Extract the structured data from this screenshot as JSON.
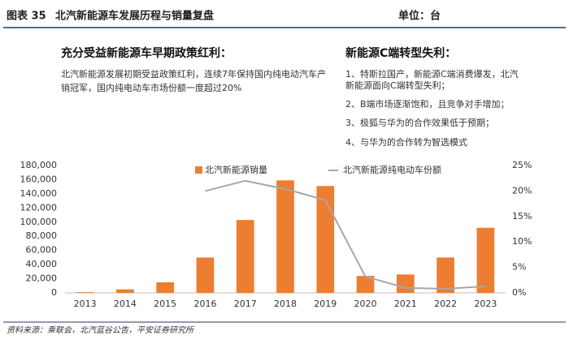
{
  "header": {
    "label": "图表 35",
    "title": "北汽新能源车发展历程与销量复盘",
    "unit": "单位：台"
  },
  "notes": {
    "left": {
      "title": "充分受益新能源车早期政策红利：",
      "lines": [
        "北汽新能源发展初期受益政策红利，连续7年保持国内纯电动汽车产",
        "销冠军，国内纯电动车市场份额一度超过20%"
      ]
    },
    "right": {
      "title": "新能源C端转型失利：",
      "lines": [
        "1、特斯拉国产，新能源C端消费爆发，北汽",
        "新能源面向C端转型失利；",
        "2、B端市场逐渐饱和，且竞争对手增加；",
        "3、极狐与华为的合作效果低于预期；",
        "4、与华为的合作转为智选模式"
      ]
    }
  },
  "source": "资料来源：乘联会，北汽蓝谷公告，平安证券研究所",
  "chart_data": {
    "type": "bar-line",
    "categories": [
      "2013",
      "2014",
      "2015",
      "2016",
      "2017",
      "2018",
      "2019",
      "2020",
      "2021",
      "2022",
      "2023"
    ],
    "series": [
      {
        "name": "北汽新能源销量",
        "color": "#ed7d31",
        "type": "bar",
        "values": [
          1000,
          5000,
          15000,
          50000,
          103000,
          159000,
          151000,
          24000,
          26000,
          50000,
          92000
        ]
      },
      {
        "name": "北汽新能源纯电动车份额",
        "color": "#a6a6a6",
        "type": "line",
        "axis": "y2",
        "values": [
          null,
          null,
          null,
          20,
          22,
          20.4,
          18.2,
          3.2,
          1,
          0.8,
          1.3
        ]
      }
    ],
    "ylim": [
      0,
      180000
    ],
    "yticks": [
      0,
      {
        "value": 20000,
        "label": "20,000"
      },
      {
        "value": 40000,
        "label": "40,000"
      },
      {
        "value": 60000,
        "label": "60,000"
      },
      {
        "value": 80000,
        "label": "80,000"
      },
      {
        "value": 100000,
        "label": "100,000"
      },
      {
        "value": 120000,
        "label": "120,000"
      },
      {
        "value": 140000,
        "label": "140,000"
      },
      {
        "value": 160000,
        "label": "160,000"
      },
      {
        "value": 180000,
        "label": "180,000"
      }
    ],
    "y2lim": [
      0,
      25
    ],
    "y2ticks": [
      {
        "value": 0,
        "label": "0%"
      },
      {
        "value": 5,
        "label": "5%"
      },
      {
        "value": 10,
        "label": "10%"
      },
      {
        "value": 15,
        "label": "15%"
      },
      {
        "value": 20,
        "label": "20%"
      },
      {
        "value": 25,
        "label": "25%"
      }
    ]
  }
}
